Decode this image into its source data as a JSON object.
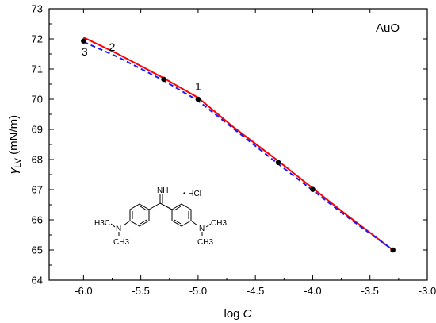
{
  "chart_data": {
    "type": "line",
    "panel_label": "AuO",
    "xlabel": "log C",
    "xlabel_prefix": "log ",
    "xlabel_italic": "C",
    "ylabel_symbol": "γ",
    "ylabel_sub": "LV",
    "ylabel_unit": " (mN/m)",
    "xlim": [
      -6.3,
      -3.0
    ],
    "ylim": [
      64,
      73
    ],
    "xticks": [
      -6.0,
      -5.5,
      -5.0,
      -4.5,
      -4.0,
      -3.5,
      -3.0
    ],
    "xtick_labels": [
      "-6.0",
      "-5.5",
      "-5.0",
      "-4.5",
      "-4.0",
      "-3.5",
      "-3.0"
    ],
    "yticks": [
      64,
      65,
      66,
      67,
      68,
      69,
      70,
      71,
      72,
      73
    ],
    "ytick_labels": [
      "64",
      "65",
      "66",
      "67",
      "68",
      "69",
      "70",
      "71",
      "72",
      "73"
    ],
    "grid": false,
    "series": [
      {
        "style": "markers",
        "color": "#000000",
        "x": [
          -6.0,
          -5.3,
          -5.0,
          -4.3,
          -4.0,
          -3.3
        ],
        "y": [
          71.93,
          70.66,
          70.0,
          67.9,
          67.01,
          65.0
        ]
      },
      {
        "style": "solid",
        "color": "#ff0000",
        "x": [
          -6.0,
          -5.7,
          -5.3,
          -5.0,
          -4.7,
          -4.3,
          -4.0,
          -3.7,
          -3.3
        ],
        "y": [
          72.05,
          71.5,
          70.7,
          70.05,
          69.1,
          67.95,
          67.05,
          66.15,
          65.0
        ]
      },
      {
        "style": "dashed",
        "color": "#1a1aff",
        "x": [
          -6.0,
          -5.7,
          -5.3,
          -5.0,
          -4.7,
          -4.3,
          -4.0,
          -3.7,
          -3.3
        ],
        "y": [
          71.9,
          71.4,
          70.62,
          69.95,
          69.05,
          67.85,
          66.98,
          66.1,
          65.0
        ]
      }
    ],
    "annotations": [
      {
        "text": "1",
        "x": -5.0,
        "y": 70.3
      },
      {
        "text": "2",
        "x": -5.75,
        "y": 71.6
      },
      {
        "text": "3",
        "x": -5.99,
        "y": 71.45
      }
    ],
    "inset_structure": {
      "imine": "NH",
      "salt": "• HCl",
      "left_group": [
        "H3C",
        "N",
        "CH3"
      ],
      "right_group": [
        "N",
        "CH3",
        "CH3"
      ]
    }
  }
}
